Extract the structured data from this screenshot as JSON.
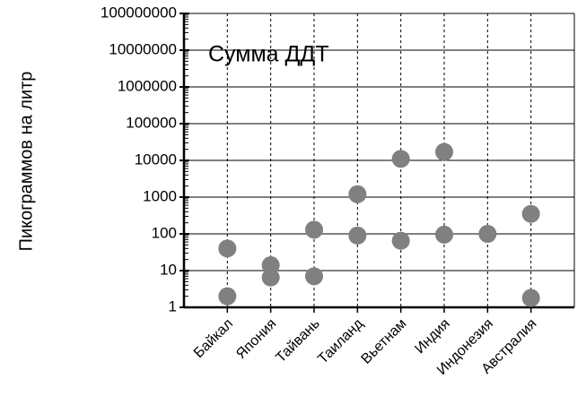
{
  "chart_data": {
    "type": "scatter",
    "title": "Сумма ДДТ",
    "y_label": "Пикограммов на литр",
    "categories": [
      "Байкал",
      "Япония",
      "Тайвань",
      "Таиланд",
      "Вьетнам",
      "Индия",
      "Индонезия",
      "Австралия"
    ],
    "series": [
      {
        "color": "#808080",
        "values": [
          40,
          14,
          130,
          1200,
          11000,
          17000,
          100,
          350
        ]
      },
      {
        "color": "#808080",
        "values": [
          2,
          6.5,
          7,
          90,
          65,
          95,
          null,
          1.8
        ]
      }
    ],
    "log_scale": true,
    "ylim": [
      1,
      100000000
    ],
    "yticks": [
      1,
      10,
      100,
      1000,
      10000,
      100000,
      1000000,
      10000000,
      100000000
    ],
    "grid": true
  }
}
